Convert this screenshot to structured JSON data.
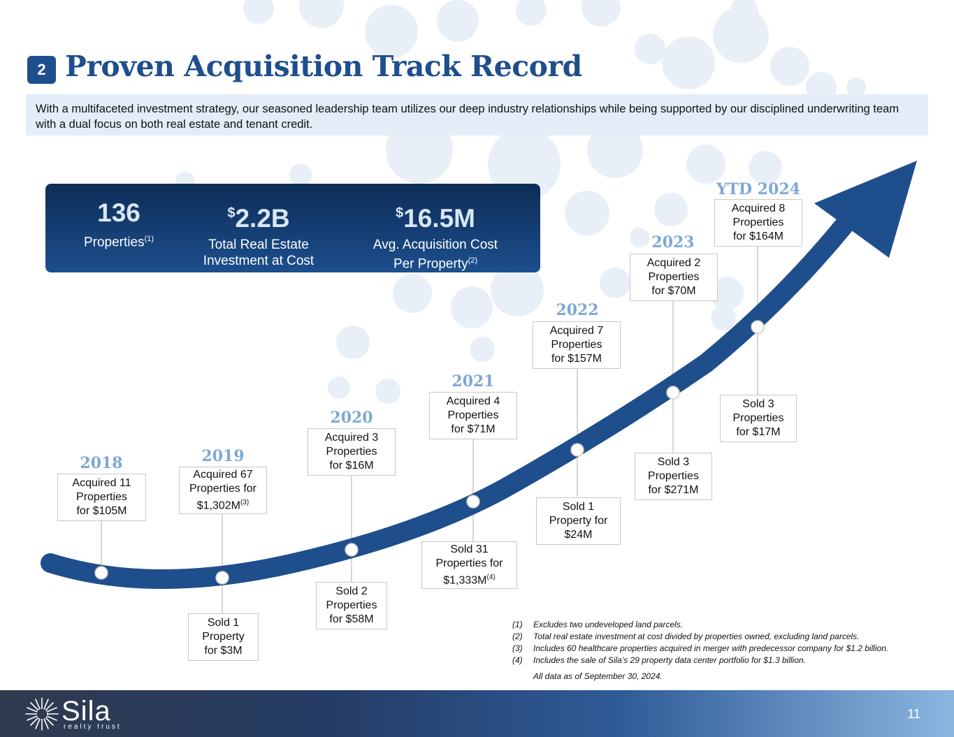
{
  "header": {
    "section_number": "2",
    "title": "Proven Acquisition Track Record",
    "intro": "With a multifaceted investment strategy, our seasoned leadership team utilizes our deep industry relationships while being supported by our disciplined underwriting team with a dual focus on both real estate and tenant credit."
  },
  "stats": [
    {
      "value": "136",
      "label": "Properties",
      "sup": "(1)"
    },
    {
      "value_prefix": "$",
      "value": "2.2B",
      "label_line1": "Total Real Estate",
      "label_line2": "Investment at Cost"
    },
    {
      "value_prefix": "$",
      "value": "16.5M",
      "label_line1": "Avg. Acquisition Cost",
      "label_line2": "Per Property",
      "sup": "(2)"
    }
  ],
  "timeline": [
    {
      "year": "2018",
      "acquired": [
        "Acquired 11",
        "Properties",
        "for $105M"
      ],
      "sold": []
    },
    {
      "year": "2019",
      "acquired": [
        "Acquired 67",
        "Properties for",
        "$1,302M"
      ],
      "acquired_sup": "(3)",
      "sold": [
        "Sold 1",
        "Property",
        "for $3M"
      ]
    },
    {
      "year": "2020",
      "acquired": [
        "Acquired 3",
        "Properties",
        "for $16M"
      ],
      "sold": [
        "Sold 2",
        "Properties",
        "for $58M"
      ]
    },
    {
      "year": "2021",
      "acquired": [
        "Acquired 4",
        "Properties",
        "for $71M"
      ],
      "sold": [
        "Sold 31",
        "Properties for",
        "$1,333M"
      ],
      "sold_sup": "(4)"
    },
    {
      "year": "2022",
      "acquired": [
        "Acquired 7",
        "Properties",
        "for $157M"
      ],
      "sold": [
        "Sold 1",
        "Property for",
        "$24M"
      ]
    },
    {
      "year": "2023",
      "acquired": [
        "Acquired 2",
        "Properties",
        "for $70M"
      ],
      "sold": [
        "Sold 3",
        "Properties",
        "for $271M"
      ]
    },
    {
      "year": "YTD 2024",
      "acquired": [
        "Acquired 8",
        "Properties",
        "for $164M"
      ],
      "sold": [
        "Sold 3",
        "Properties",
        "for $17M"
      ]
    }
  ],
  "footnotes": [
    {
      "num": "(1)",
      "text": "Excludes two undeveloped land parcels."
    },
    {
      "num": "(2)",
      "text": "Total real estate investment at cost divided by properties owned, excluding land parcels."
    },
    {
      "num": "(3)",
      "text": "Includes 60 healthcare properties acquired in merger with predecessor company for $1.2 billion."
    },
    {
      "num": "(4)",
      "text": "Includes the sale of Sila’s 29 property data center portfolio for $1.3 billion."
    }
  ],
  "data_note": "All data as of September 30, 2024.",
  "footer": {
    "logo_word": "Sila",
    "logo_sub": "realty trust",
    "page_number": "11"
  },
  "colors": {
    "brand_blue": "#1f4e8c",
    "year_blue": "#7ea8d6",
    "stats_dark": "#0d2c56"
  }
}
